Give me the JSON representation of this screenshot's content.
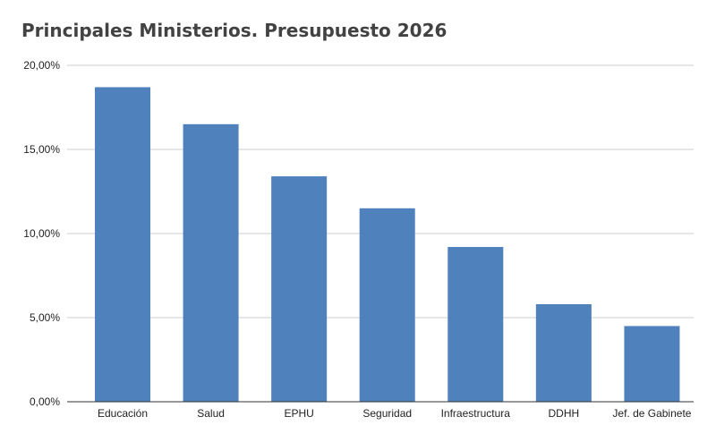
{
  "chart_data": {
    "type": "bar",
    "title": "Principales Ministerios. Presupuesto 2026",
    "xlabel": "",
    "ylabel": "",
    "categories": [
      "Educación",
      "Salud",
      "EPHU",
      "Seguridad",
      "Infraestructura",
      "DDHH",
      "Jef. de Gabinete"
    ],
    "values": [
      18.7,
      16.5,
      13.4,
      11.5,
      9.2,
      5.8,
      4.5
    ],
    "ylim": [
      0,
      20
    ],
    "yticks": [
      "0,00%",
      "5,00%",
      "10,00%",
      "15,00%",
      "20,00%"
    ],
    "ytick_values": [
      0,
      5,
      10,
      15,
      20
    ],
    "grid": true,
    "legend": "none",
    "bar_color": "#4f81bd"
  }
}
